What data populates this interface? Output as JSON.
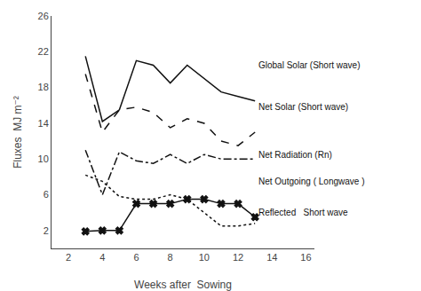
{
  "chart_data": {
    "type": "line",
    "x_label": "Weeks after  Sowing",
    "y_label": "Fluxes  MJ m⁻²",
    "x": [
      3,
      4,
      5,
      6,
      7,
      8,
      9,
      10,
      11,
      12,
      13
    ],
    "series": [
      {
        "color": "#111111",
        "line_style": "solid",
        "marker": "none",
        "values": [
          21.5,
          14.2,
          15.5,
          21.0,
          20.5,
          18.5,
          20.5,
          19.0,
          17.5,
          17.0,
          16.5
        ]
      },
      {
        "color": "#111111",
        "line_style": "dash",
        "marker": "none",
        "values": [
          19.5,
          13.0,
          15.5,
          15.8,
          15.2,
          13.5,
          14.5,
          14.0,
          12.0,
          11.5,
          13.0
        ]
      },
      {
        "color": "#111111",
        "line_style": "dashdot",
        "marker": "none",
        "values": [
          11.0,
          6.0,
          10.8,
          9.8,
          9.5,
          10.5,
          9.5,
          10.5,
          10.0,
          10.0,
          10.0
        ]
      },
      {
        "color": "#111111",
        "line_style": "dot",
        "marker": "none",
        "values": [
          8.2,
          7.5,
          5.8,
          5.5,
          5.5,
          6.0,
          5.5,
          4.0,
          2.5,
          2.5,
          2.8
        ]
      },
      {
        "color": "#111111",
        "line_style": "solid",
        "marker": "x",
        "values": [
          1.9,
          2.0,
          2.0,
          5.0,
          5.0,
          5.0,
          5.5,
          5.5,
          5.0,
          5.0,
          3.5
        ]
      }
    ],
    "annotations": [
      {
        "text": "Global Solar (Short wave)",
        "x": 13.1,
        "y": 20.5
      },
      {
        "text": "Net Solar (Short wave)",
        "x": 13.1,
        "y": 15.8
      },
      {
        "text": "Net Radiation (Rn)",
        "x": 13.1,
        "y": 10.5
      },
      {
        "text": "Net Outgoing ( Longwave )",
        "x": 13.1,
        "y": 7.5
      },
      {
        "text": "Reflected   Short wave",
        "x": 13.1,
        "y": 4.0
      }
    ],
    "xlim": [
      1,
      16.5
    ],
    "ylim": [
      0,
      26
    ],
    "xticks": [
      2,
      4,
      6,
      8,
      10,
      12,
      14,
      16
    ],
    "yticks": [
      2,
      6,
      10,
      14,
      18,
      22,
      26
    ],
    "grid": false
  }
}
